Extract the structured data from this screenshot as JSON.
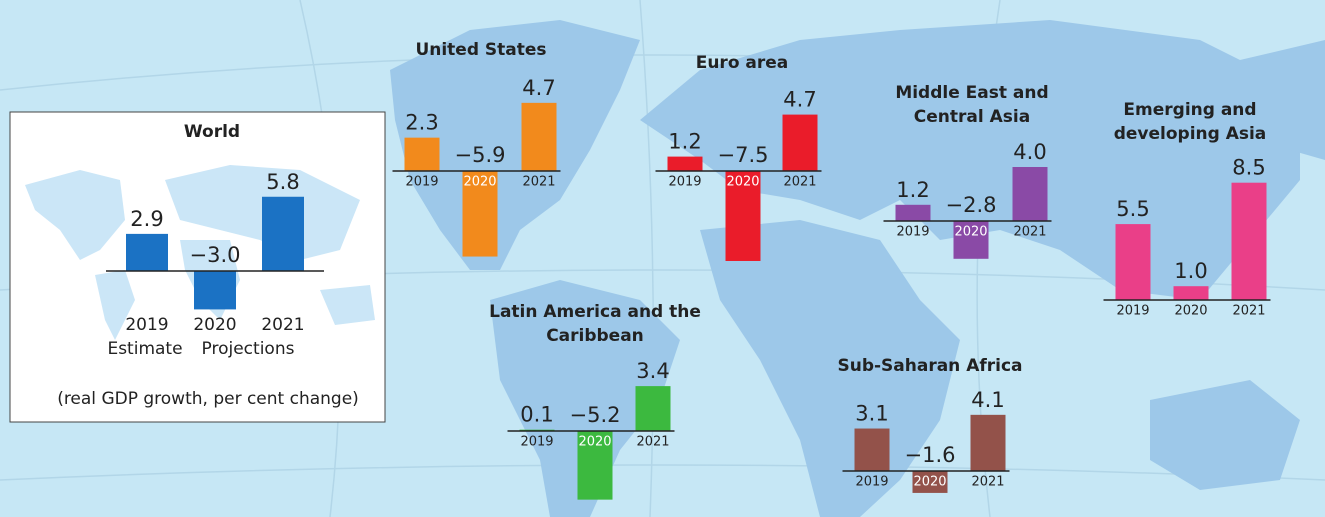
{
  "chart_data": [
    {
      "type": "bar",
      "title": "World",
      "categories": [
        "2019",
        "2020",
        "2021"
      ],
      "values": [
        2.9,
        -3.0,
        5.8
      ],
      "value_labels": [
        "2.9",
        "−3.0",
        "5.8"
      ],
      "color": "#1b72c4",
      "annotations": [
        "Estimate",
        "Projections"
      ],
      "note": "(real GDP growth, per cent change)"
    },
    {
      "type": "bar",
      "title": "United States",
      "categories": [
        "2019",
        "2020",
        "2021"
      ],
      "values": [
        2.3,
        -5.9,
        4.7
      ],
      "value_labels": [
        "2.3",
        "−5.9",
        "4.7"
      ],
      "color": "#f28a1c"
    },
    {
      "type": "bar",
      "title": "Euro area",
      "categories": [
        "2019",
        "2020",
        "2021"
      ],
      "values": [
        1.2,
        -7.5,
        4.7
      ],
      "value_labels": [
        "1.2",
        "−7.5",
        "4.7"
      ],
      "color": "#ea1c2a"
    },
    {
      "type": "bar",
      "title": "Middle East and Central Asia",
      "categories": [
        "2019",
        "2020",
        "2021"
      ],
      "values": [
        1.2,
        -2.8,
        4.0
      ],
      "value_labels": [
        "1.2",
        "−2.8",
        "4.0"
      ],
      "color": "#8a4aa6"
    },
    {
      "type": "bar",
      "title": "Emerging and developing Asia",
      "categories": [
        "2019",
        "2020",
        "2021"
      ],
      "values": [
        5.5,
        1.0,
        8.5
      ],
      "value_labels": [
        "5.5",
        "1.0",
        "8.5"
      ],
      "color": "#ea3f88"
    },
    {
      "type": "bar",
      "title": "Latin America and the Caribbean",
      "categories": [
        "2019",
        "2020",
        "2021"
      ],
      "values": [
        0.1,
        -5.2,
        3.4
      ],
      "value_labels": [
        "0.1",
        "−5.2",
        "3.4"
      ],
      "color": "#3cb93f"
    },
    {
      "type": "bar",
      "title": "Sub-Saharan Africa",
      "categories": [
        "2019",
        "2020",
        "2021"
      ],
      "values": [
        3.1,
        -1.6,
        4.1
      ],
      "value_labels": [
        "3.1",
        "−1.6",
        "4.1"
      ],
      "color": "#93524a"
    }
  ]
}
